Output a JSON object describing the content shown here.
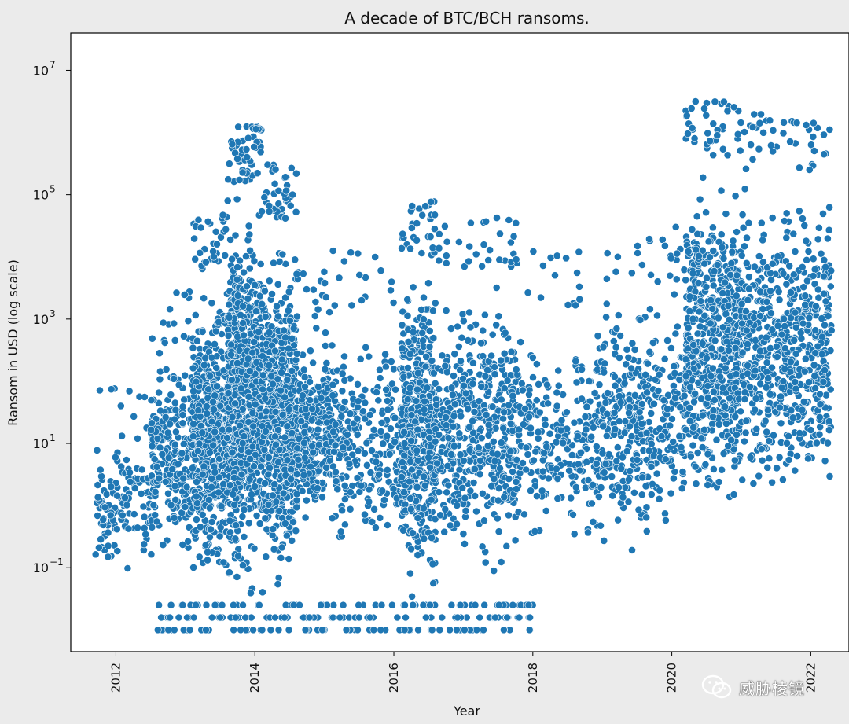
{
  "chart_data": {
    "type": "scatter",
    "title": "A decade of BTC/BCH ransoms.",
    "xlabel": "Year",
    "ylabel": "Ransom in USD (log scale)",
    "xlim": [
      2011.35,
      2022.55
    ],
    "ylim_log10": [
      -2.35,
      7.6
    ],
    "yscale": "log",
    "x_ticks": [
      "2012",
      "2014",
      "2016",
      "2018",
      "2020",
      "2022"
    ],
    "y_ticks": [
      {
        "base": "10",
        "exp": "7"
      },
      {
        "base": "10",
        "exp": "5"
      },
      {
        "base": "10",
        "exp": "3"
      },
      {
        "base": "10",
        "exp": "1"
      },
      {
        "base": "10",
        "exp": "−1"
      }
    ],
    "grid": false,
    "marker_color": "#1f77b4",
    "marker_edge": "#ffffff",
    "density_bands": [
      {
        "x_start": 2011.7,
        "x_end": 2012.5,
        "log_low": -1.4,
        "log_high": 1.4,
        "weight": 1
      },
      {
        "x_start": 2012.5,
        "x_end": 2013.1,
        "log_low": -1.1,
        "log_high": 2.6,
        "weight": 2
      },
      {
        "x_start": 2013.1,
        "x_end": 2013.6,
        "log_low": -1.6,
        "log_high": 3.8,
        "weight": 4
      },
      {
        "x_start": 2013.6,
        "x_end": 2014.1,
        "log_low": -1.7,
        "log_high": 5.2,
        "weight": 6
      },
      {
        "x_start": 2014.1,
        "x_end": 2014.6,
        "log_low": -1.7,
        "log_high": 4.6,
        "weight": 5
      },
      {
        "x_start": 2014.6,
        "x_end": 2015.1,
        "log_low": -0.6,
        "log_high": 3.0,
        "weight": 2
      },
      {
        "x_start": 2015.1,
        "x_end": 2016.1,
        "log_low": -1.2,
        "log_high": 3.2,
        "weight": 2
      },
      {
        "x_start": 2016.1,
        "x_end": 2016.6,
        "log_low": -1.6,
        "log_high": 4.0,
        "weight": 4
      },
      {
        "x_start": 2016.6,
        "x_end": 2017.8,
        "log_low": -1.3,
        "log_high": 3.8,
        "weight": 4
      },
      {
        "x_start": 2017.8,
        "x_end": 2019.0,
        "log_low": -0.9,
        "log_high": 3.2,
        "weight": 2
      },
      {
        "x_start": 2019.0,
        "x_end": 2020.2,
        "log_low": -0.9,
        "log_high": 3.6,
        "weight": 3
      },
      {
        "x_start": 2020.2,
        "x_end": 2021.0,
        "log_low": -0.4,
        "log_high": 5.6,
        "weight": 5
      },
      {
        "x_start": 2021.0,
        "x_end": 2022.3,
        "log_low": -0.3,
        "log_high": 5.4,
        "weight": 5
      }
    ],
    "floor_values_log10": [
      -2.0,
      -1.8,
      -1.6
    ]
  },
  "watermark": {
    "text": "威胁棱镜",
    "icon": "wechat-icon"
  }
}
